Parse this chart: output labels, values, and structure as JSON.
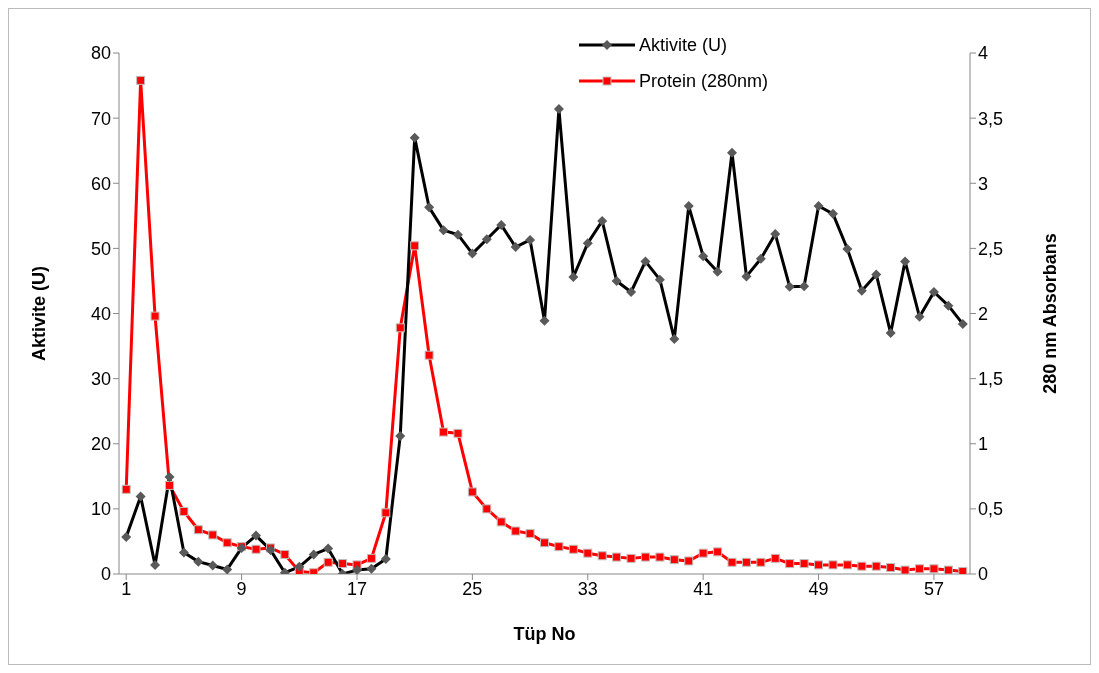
{
  "chart_data": {
    "type": "line",
    "xlabel": "Tüp No",
    "ylabel": "Aktivite (U)",
    "y2label": "280 nm Absorbans",
    "x": [
      1,
      2,
      3,
      4,
      5,
      6,
      7,
      8,
      9,
      10,
      11,
      12,
      13,
      14,
      15,
      16,
      17,
      18,
      19,
      20,
      21,
      22,
      23,
      24,
      25,
      26,
      27,
      28,
      29,
      30,
      31,
      32,
      33,
      34,
      35,
      36,
      37,
      38,
      39,
      40,
      41,
      42,
      43,
      44,
      45,
      46,
      47,
      48,
      49,
      50,
      51,
      52,
      53,
      54,
      55,
      56,
      57,
      58,
      59
    ],
    "xlim": [
      0.5,
      59.5
    ],
    "xticks": [
      1,
      9,
      17,
      25,
      33,
      41,
      49,
      57
    ],
    "ylim": [
      0,
      80
    ],
    "yticks": [
      0,
      10,
      20,
      30,
      40,
      50,
      60,
      70,
      80
    ],
    "y2lim": [
      0,
      4
    ],
    "y2ticks": [
      0,
      {
        "value": 0.5,
        "label": "0,5"
      },
      1,
      {
        "value": 1.5,
        "label": "1,5"
      },
      2,
      {
        "value": 2.5,
        "label": "2,5"
      },
      3,
      {
        "value": 3.5,
        "label": "3,5"
      },
      4
    ],
    "grid": false,
    "legend": "top right",
    "line_style": "solid",
    "series": [
      {
        "name": "Aktivite (U)",
        "color": "#000000",
        "marker": "diamond",
        "values": [
          5.7,
          11.9,
          1.4,
          14.9,
          3.3,
          1.9,
          1.3,
          0.7,
          4,
          5.9,
          3.7,
          0.2,
          1.1,
          3,
          3.9,
          0,
          0.6,
          0.8,
          2.3,
          21.2,
          67,
          56.3,
          52.8,
          52.1,
          49.2,
          51.4,
          53.6,
          50.2,
          51.3,
          38.9,
          71.4,
          45.6,
          50.8,
          54.2,
          45,
          43.3,
          48,
          45.2,
          36.1,
          56.5,
          48.8,
          46.4,
          64.7,
          45.7,
          48.4,
          52.2,
          44.1,
          44.2,
          56.5,
          55.3,
          49.9,
          43.5,
          46,
          37,
          48,
          39.5,
          43.3,
          41.2,
          38.4
        ]
      },
      {
        "name": "Protein (280nm)",
        "color": "#ff0000",
        "marker": "square",
        "axis": "y2",
        "values": [
          0.65,
          3.79,
          1.98,
          0.68,
          0.48,
          0.34,
          0.3,
          0.24,
          0.21,
          0.19,
          0.2,
          0.15,
          0.02,
          0.01,
          0.09,
          0.08,
          0.07,
          0.12,
          0.47,
          1.89,
          2.52,
          1.68,
          1.09,
          1.08,
          0.63,
          0.5,
          0.4,
          0.33,
          0.31,
          0.24,
          0.21,
          0.19,
          0.16,
          0.14,
          0.13,
          0.12,
          0.13,
          0.13,
          0.11,
          0.1,
          0.16,
          0.17,
          0.09,
          0.09,
          0.09,
          0.12,
          0.08,
          0.08,
          0.07,
          0.07,
          0.07,
          0.06,
          0.06,
          0.05,
          0.03,
          0.04,
          0.04,
          0.03,
          0.02
        ]
      }
    ]
  }
}
